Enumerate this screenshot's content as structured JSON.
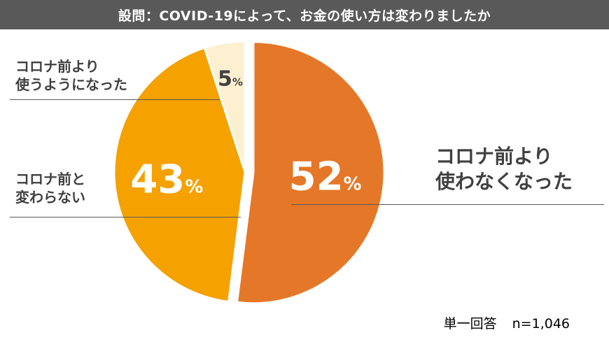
{
  "title": "設問：COVID-19によって、お金の使い方は変わりましたか",
  "note": {
    "label": "単一回答",
    "n": "n=1,046"
  },
  "colors": {
    "title_bg": "#595959",
    "slice_less": "#E57728",
    "slice_same": "#F5A100",
    "slice_more": "#FDF0D0",
    "text_dark": "#404040"
  },
  "chart_data": {
    "type": "pie",
    "title": "設問：COVID-19によって、お金の使い方は変わりましたか",
    "categories": [
      "コロナ前より使わなくなった",
      "コロナ前と変わらない",
      "コロナ前より使うようになった"
    ],
    "values": [
      52,
      43,
      5
    ],
    "unit": "%",
    "slices": [
      {
        "value_text": "52",
        "unit": "%",
        "label_lines": [
          "コロナ前より",
          "使わなくなった"
        ]
      },
      {
        "value_text": "43",
        "unit": "%",
        "label_lines": [
          "コロナ前と",
          "変わらない"
        ]
      },
      {
        "value_text": "5",
        "unit": "%",
        "label_lines": [
          "コロナ前より",
          "使うようになった"
        ]
      }
    ]
  }
}
